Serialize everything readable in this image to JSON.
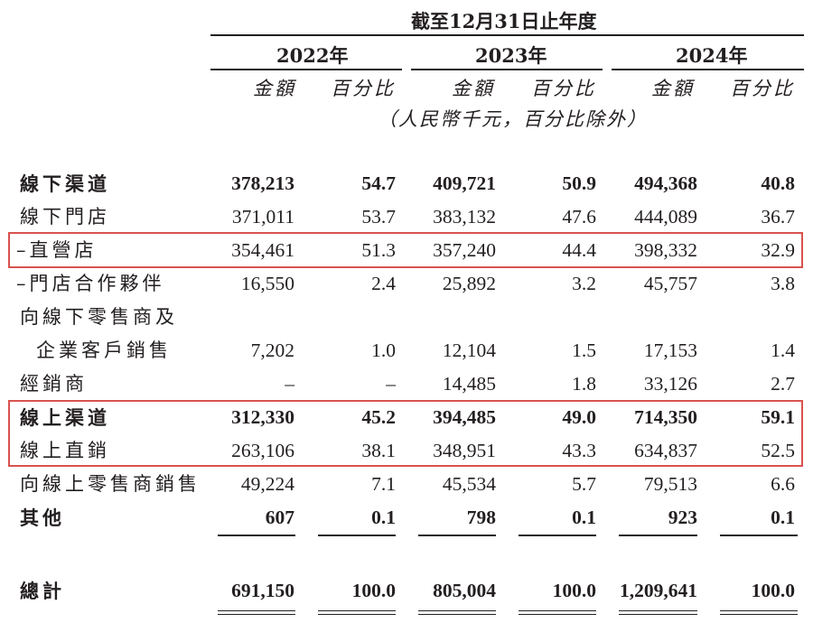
{
  "header": {
    "period": "截至12月31日止年度",
    "years": [
      "2022年",
      "2023年",
      "2024年"
    ],
    "amount_label": "金額",
    "pct_label": "百分比",
    "unit_note": "（人民幣千元，百分比除外）"
  },
  "rows": [
    {
      "label": "線下渠道",
      "v": [
        "378,213",
        "54.7",
        "409,721",
        "50.9",
        "494,368",
        "40.8"
      ]
    },
    {
      "label": "線下門店",
      "v": [
        "371,011",
        "53.7",
        "383,132",
        "47.6",
        "444,089",
        "36.7"
      ]
    },
    {
      "label": "–直營店",
      "v": [
        "354,461",
        "51.3",
        "357,240",
        "44.4",
        "398,332",
        "32.9"
      ]
    },
    {
      "label": "–門店合作夥伴",
      "v": [
        "16,550",
        "2.4",
        "25,892",
        "3.2",
        "45,757",
        "3.8"
      ]
    },
    {
      "label": "向線下零售商及",
      "v": [
        "",
        "",
        "",
        "",
        "",
        ""
      ]
    },
    {
      "label": "企業客戶銷售",
      "v": [
        "7,202",
        "1.0",
        "12,104",
        "1.5",
        "17,153",
        "1.4"
      ]
    },
    {
      "label": "經銷商",
      "v": [
        "–",
        "–",
        "14,485",
        "1.8",
        "33,126",
        "2.7"
      ]
    },
    {
      "label": "線上渠道",
      "v": [
        "312,330",
        "45.2",
        "394,485",
        "49.0",
        "714,350",
        "59.1"
      ]
    },
    {
      "label": "線上直銷",
      "v": [
        "263,106",
        "38.1",
        "348,951",
        "43.3",
        "634,837",
        "52.5"
      ]
    },
    {
      "label": "向線上零售商銷售",
      "v": [
        "49,224",
        "7.1",
        "45,534",
        "5.7",
        "79,513",
        "6.6"
      ]
    },
    {
      "label": "其他",
      "v": [
        "607",
        "0.1",
        "798",
        "0.1",
        "923",
        "0.1"
      ]
    },
    {
      "label": "總計",
      "v": [
        "691,150",
        "100.0",
        "805,004",
        "100.0",
        "1,209,641",
        "100.0"
      ]
    }
  ],
  "highlight_color": "#d9534f"
}
